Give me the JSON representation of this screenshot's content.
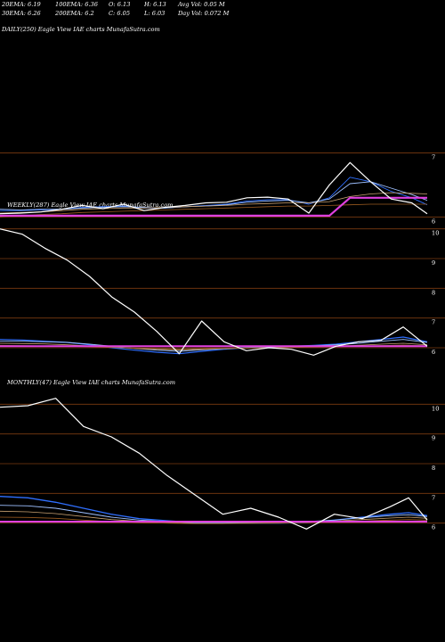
{
  "header": {
    "row1": [
      "20EMA: 6.19",
      "100EMA: 6.36",
      "O: 6.13",
      "H: 6.13",
      "Avg Vol: 0.05 M"
    ],
    "row2": [
      "30EMA: 6.26",
      "200EMA: 6.2",
      "C: 6.05",
      "L: 6.03",
      "Day Vol: 0.072 M"
    ]
  },
  "colors": {
    "background": "#000000",
    "grid": "#7a3a10",
    "price": "#ffffff",
    "ema_blue": "#2f6fff",
    "ema_light": "#9ec0ff",
    "ema_tan": "#c8a070",
    "ema_brown": "#9a5a20",
    "support": "#e040e0"
  },
  "chart_data": [
    {
      "type": "line",
      "title": "DAILY(250) Eagle View IAE charts MunafaSutra.com",
      "yticks": [
        7,
        6
      ],
      "ylim": [
        5.35,
        7.3
      ],
      "x": [
        0,
        12,
        24,
        36,
        48,
        60,
        72,
        84,
        96,
        108,
        120,
        132,
        144,
        156,
        168,
        180,
        192,
        204,
        216,
        228,
        240,
        249
      ],
      "series": [
        {
          "name": "price",
          "values": [
            6.05,
            6.06,
            6.08,
            6.12,
            6.18,
            6.13,
            6.2,
            6.1,
            6.15,
            6.18,
            6.22,
            6.23,
            6.3,
            6.31,
            6.28,
            6.06,
            6.5,
            6.85,
            6.55,
            6.28,
            6.22,
            6.05
          ]
        },
        {
          "name": "20EMA",
          "values": [
            6.1,
            6.1,
            6.11,
            6.12,
            6.15,
            6.16,
            6.17,
            6.14,
            6.14,
            6.16,
            6.18,
            6.2,
            6.25,
            6.27,
            6.27,
            6.2,
            6.3,
            6.62,
            6.55,
            6.4,
            6.3,
            6.19
          ]
        },
        {
          "name": "30EMA",
          "values": [
            6.12,
            6.11,
            6.12,
            6.12,
            6.14,
            6.15,
            6.16,
            6.15,
            6.14,
            6.16,
            6.17,
            6.19,
            6.23,
            6.25,
            6.26,
            6.22,
            6.28,
            6.52,
            6.55,
            6.45,
            6.35,
            6.26
          ]
        },
        {
          "name": "100EMA",
          "values": [
            6.06,
            6.07,
            6.08,
            6.1,
            6.12,
            6.13,
            6.14,
            6.14,
            6.15,
            6.16,
            6.17,
            6.18,
            6.2,
            6.21,
            6.22,
            6.22,
            6.24,
            6.32,
            6.36,
            6.38,
            6.37,
            6.36
          ]
        },
        {
          "name": "200EMA",
          "values": [
            6.0,
            6.02,
            6.04,
            6.05,
            6.07,
            6.08,
            6.09,
            6.1,
            6.11,
            6.12,
            6.13,
            6.14,
            6.15,
            6.16,
            6.17,
            6.17,
            6.18,
            6.19,
            6.2,
            6.2,
            6.2,
            6.2
          ]
        },
        {
          "name": "support",
          "values": [
            6.02,
            6.02,
            6.02,
            6.02,
            6.02,
            6.02,
            6.02,
            6.02,
            6.02,
            6.02,
            6.02,
            6.02,
            6.02,
            6.02,
            6.02,
            6.02,
            6.02,
            6.3,
            6.3,
            6.3,
            6.3,
            6.3
          ]
        }
      ]
    },
    {
      "type": "line",
      "title": "WEEKLY(287) Eagle View IAE charts MunafaSutra.com",
      "yticks": [
        10,
        9,
        8,
        7,
        6
      ],
      "ylim": [
        5.7,
        10.5
      ],
      "x": [
        0,
        15,
        30,
        45,
        60,
        75,
        90,
        105,
        120,
        135,
        150,
        165,
        180,
        195,
        210,
        225,
        240,
        255,
        270,
        286
      ],
      "series": [
        {
          "name": "price",
          "values": [
            10.0,
            9.82,
            9.35,
            8.95,
            8.4,
            7.7,
            7.2,
            6.55,
            5.8,
            6.9,
            6.2,
            5.9,
            6.0,
            5.95,
            5.75,
            6.05,
            6.2,
            6.25,
            6.7,
            6.05
          ]
        },
        {
          "name": "ema_blue",
          "values": [
            6.28,
            6.26,
            6.22,
            6.18,
            6.1,
            6.0,
            5.92,
            5.85,
            5.8,
            5.88,
            5.95,
            6.0,
            6.02,
            6.05,
            6.08,
            6.12,
            6.2,
            6.28,
            6.36,
            6.2
          ]
        },
        {
          "name": "ema_light",
          "values": [
            6.22,
            6.22,
            6.2,
            6.18,
            6.12,
            6.05,
            5.98,
            5.92,
            5.88,
            5.93,
            5.97,
            6.0,
            6.02,
            6.04,
            6.06,
            6.1,
            6.15,
            6.22,
            6.28,
            6.18
          ]
        },
        {
          "name": "ema_tan",
          "values": [
            6.15,
            6.14,
            6.13,
            6.1,
            6.06,
            6.02,
            5.98,
            5.95,
            5.93,
            5.95,
            5.97,
            5.99,
            6.0,
            6.02,
            6.03,
            6.05,
            6.08,
            6.12,
            6.15,
            6.1
          ]
        },
        {
          "name": "ema_brown",
          "values": [
            6.08,
            6.07,
            6.06,
            6.05,
            6.03,
            6.01,
            5.99,
            5.97,
            5.96,
            5.97,
            5.98,
            5.99,
            6.0,
            6.01,
            6.02,
            6.03,
            6.05,
            6.07,
            6.09,
            6.06
          ]
        },
        {
          "name": "support",
          "values": [
            6.05,
            6.05,
            6.05,
            6.05,
            6.05,
            6.05,
            6.05,
            6.05,
            6.05,
            6.05,
            6.05,
            6.05,
            6.05,
            6.05,
            6.05,
            6.05,
            6.05,
            6.05,
            6.05,
            6.05
          ]
        }
      ]
    },
    {
      "type": "line",
      "title": "MONTHLY(47) Eagle View IAE charts MunafaSutra.com",
      "yticks": [
        10,
        9,
        8,
        7,
        6
      ],
      "ylim": [
        5.6,
        10.4
      ],
      "x": [
        0,
        3,
        6,
        9,
        12,
        15,
        18,
        21,
        24,
        27,
        30,
        33,
        36,
        39,
        42,
        44,
        46
      ],
      "series": [
        {
          "name": "price",
          "values": [
            9.9,
            9.95,
            10.2,
            9.25,
            8.9,
            8.35,
            7.6,
            6.95,
            6.3,
            6.5,
            6.2,
            5.8,
            6.3,
            6.15,
            6.55,
            6.85,
            6.1
          ]
        },
        {
          "name": "ema_blue",
          "values": [
            6.9,
            6.85,
            6.7,
            6.5,
            6.3,
            6.15,
            6.08,
            6.02,
            6.0,
            6.0,
            6.0,
            6.02,
            6.1,
            6.2,
            6.3,
            6.35,
            6.25
          ]
        },
        {
          "name": "ema_light",
          "values": [
            6.6,
            6.58,
            6.5,
            6.35,
            6.2,
            6.1,
            6.05,
            6.0,
            6.0,
            6.02,
            6.03,
            6.05,
            6.1,
            6.18,
            6.25,
            6.28,
            6.22
          ]
        },
        {
          "name": "ema_tan",
          "values": [
            6.4,
            6.38,
            6.32,
            6.22,
            6.12,
            6.06,
            6.02,
            5.99,
            5.99,
            6.0,
            6.01,
            6.03,
            6.07,
            6.12,
            6.17,
            6.2,
            6.16
          ]
        },
        {
          "name": "ema_brown",
          "values": [
            6.2,
            6.19,
            6.16,
            6.1,
            6.05,
            6.02,
            6.0,
            5.98,
            5.98,
            5.99,
            6.0,
            6.02,
            6.04,
            6.07,
            6.1,
            6.12,
            6.1
          ]
        },
        {
          "name": "support",
          "values": [
            6.05,
            6.05,
            6.05,
            6.05,
            6.05,
            6.05,
            6.05,
            6.05,
            6.05,
            6.05,
            6.05,
            6.05,
            6.05,
            6.05,
            6.05,
            6.05,
            6.05
          ]
        }
      ]
    }
  ]
}
